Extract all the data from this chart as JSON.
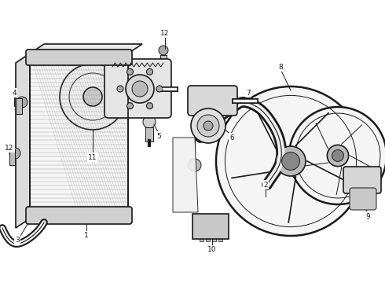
{
  "bg_color": "#ffffff",
  "lc": "#1a1a1a",
  "figsize": [
    4.9,
    3.6
  ],
  "dpi": 100,
  "label_fs": 6.5
}
